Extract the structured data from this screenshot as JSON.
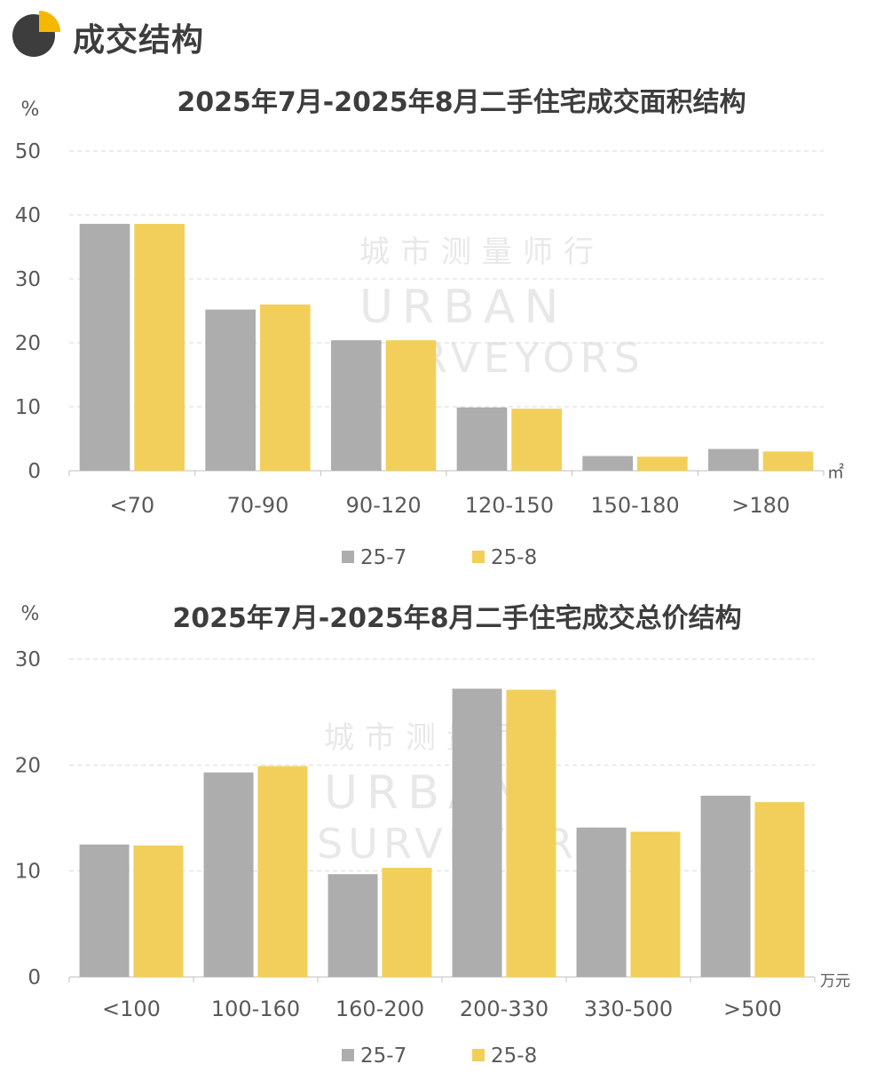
{
  "header": {
    "title": "成交结构"
  },
  "colors": {
    "gray": "#adadad",
    "yellow": "#f2cf5b",
    "grid": "#d9d9d9",
    "icon_dark": "#3d3d3d",
    "icon_accent": "#f5b800"
  },
  "watermark": {
    "cn": "城市测量师行",
    "en1": "URBAN",
    "en2": "SURVEYORS"
  },
  "chart_data": [
    {
      "type": "bar",
      "title": "2025年7月-2025年8月二手住宅成交面积结构",
      "ylabel": "%",
      "xunit": "㎡",
      "ylim": [
        0,
        50
      ],
      "yticks": [
        0,
        10,
        20,
        30,
        40,
        50
      ],
      "categories": [
        "<70",
        "70-90",
        "90-120",
        "120-150",
        "150-180",
        ">180"
      ],
      "series": [
        {
          "name": "25-7",
          "color": "#adadad",
          "values": [
            38.6,
            25.2,
            20.4,
            9.9,
            2.3,
            3.4
          ]
        },
        {
          "name": "25-8",
          "color": "#f2cf5b",
          "values": [
            38.6,
            26.0,
            20.4,
            9.7,
            2.2,
            3.0
          ]
        }
      ],
      "grid": true,
      "legend": "bottom"
    },
    {
      "type": "bar",
      "title": "2025年7月-2025年8月二手住宅成交总价结构",
      "ylabel": "%",
      "xunit": "万元",
      "ylim": [
        0,
        30
      ],
      "yticks": [
        0,
        10,
        20,
        30
      ],
      "categories": [
        "<100",
        "100-160",
        "160-200",
        "200-330",
        "330-500",
        ">500"
      ],
      "series": [
        {
          "name": "25-7",
          "color": "#adadad",
          "values": [
            12.5,
            19.3,
            9.7,
            27.2,
            14.1,
            17.1
          ]
        },
        {
          "name": "25-8",
          "color": "#f2cf5b",
          "values": [
            12.4,
            19.9,
            10.3,
            27.1,
            13.7,
            16.5
          ]
        }
      ],
      "grid": true,
      "legend": "bottom"
    }
  ]
}
